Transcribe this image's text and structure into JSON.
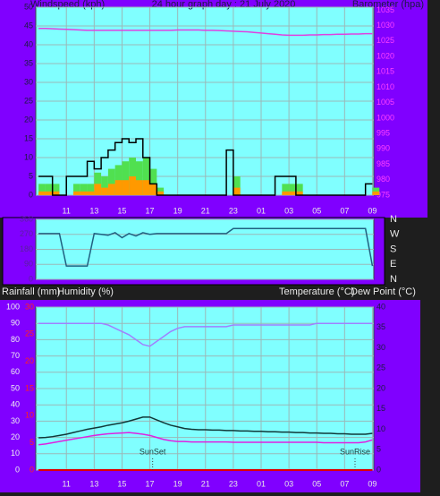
{
  "chart_data": [
    {
      "type": "line",
      "title": "24 hour graph day : 21 July 2020",
      "ylabel": "Windspeed (kph)",
      "y2label": "Barometer (hpa)",
      "x": [
        9,
        9.5,
        10,
        10.5,
        11,
        11.5,
        12,
        12.5,
        13,
        13.5,
        14,
        14.5,
        15,
        15.5,
        16,
        16.5,
        17,
        17.5,
        18,
        18.5,
        19,
        19.5,
        20,
        20.5,
        21,
        21.5,
        22,
        22.5,
        23,
        23.5,
        24,
        24.5,
        25,
        25.5,
        26,
        26.5,
        27,
        27.5,
        28,
        28.5,
        29,
        29.5,
        30,
        30.5,
        31,
        31.5,
        32,
        32.5,
        33
      ],
      "xlim": [
        8.8,
        33.1
      ],
      "xticks": [
        11,
        13,
        15,
        17,
        19,
        21,
        23,
        {
          "value": 25,
          "label": "01"
        },
        {
          "value": 27,
          "label": "03"
        },
        {
          "value": 29,
          "label": "05"
        },
        {
          "value": 31,
          "label": "07"
        },
        {
          "value": 33,
          "label": "09"
        }
      ],
      "ylim": [
        0,
        50
      ],
      "yticks": [
        0,
        5,
        10,
        15,
        20,
        25,
        30,
        35,
        40,
        45,
        50
      ],
      "y2lim": [
        975,
        1036
      ],
      "y2ticks": [
        975,
        980,
        985,
        990,
        995,
        1000,
        1005,
        1010,
        1015,
        1020,
        1025,
        1030,
        1035
      ],
      "tick_colors": {
        "y": "#1a1a40",
        "y2": "#ff40ff"
      },
      "grid": true,
      "series": [
        {
          "color": "#50e050",
          "style": "bar",
          "values": [
            3,
            3,
            3,
            0,
            0,
            3,
            3,
            3,
            6,
            5,
            7,
            8,
            9,
            10,
            9,
            10,
            7,
            2,
            0,
            0,
            0,
            0,
            0,
            0,
            0,
            0,
            0,
            0,
            5,
            0,
            0,
            0,
            0,
            0,
            0,
            3,
            3,
            3,
            0,
            0,
            0,
            0,
            0,
            0,
            0,
            0,
            0,
            0,
            2
          ]
        },
        {
          "color": "#ff9900",
          "style": "bar",
          "values": [
            1,
            1,
            1,
            0,
            0,
            1,
            1,
            1,
            3,
            2,
            3,
            4,
            4,
            5,
            4,
            4,
            3,
            1,
            0,
            0,
            0,
            0,
            0,
            0,
            0,
            0,
            0,
            0,
            2,
            0,
            0,
            0,
            0,
            0,
            0,
            1,
            1,
            1,
            0,
            0,
            0,
            0,
            0,
            0,
            0,
            0,
            0,
            0,
            1
          ]
        },
        {
          "color": "#000000",
          "style": "step",
          "values": [
            5,
            5,
            5,
            0,
            0,
            5,
            5,
            5,
            9,
            7,
            10,
            12,
            14,
            15,
            14,
            15,
            10,
            3,
            0,
            0,
            0,
            0,
            0,
            0,
            0,
            0,
            0,
            0,
            12,
            0,
            0,
            0,
            0,
            0,
            0,
            5,
            5,
            5,
            0,
            0,
            0,
            0,
            0,
            0,
            0,
            0,
            0,
            0,
            3
          ]
        },
        {
          "color": "#e040e0",
          "style": "line",
          "axis": "y2",
          "values": [
            1029.1,
            1029.1,
            1029.0,
            1028.9,
            1028.8,
            1028.7,
            1028.6,
            1028.5,
            1028.5,
            1028.5,
            1028.5,
            1028.5,
            1028.5,
            1028.5,
            1028.5,
            1028.5,
            1028.5,
            1028.5,
            1028.5,
            1028.5,
            1028.6,
            1028.6,
            1028.6,
            1028.6,
            1028.5,
            1028.5,
            1028.4,
            1028.3,
            1028.2,
            1028.1,
            1028.0,
            1027.8,
            1027.6,
            1027.4,
            1027.2,
            1027.0,
            1026.9,
            1026.9,
            1026.9,
            1027.0,
            1027.0,
            1027.1,
            1027.1,
            1027.2,
            1027.2,
            1027.3,
            1027.3,
            1027.4,
            1027.4
          ]
        }
      ]
    },
    {
      "type": "line",
      "x": [
        9,
        9.5,
        10,
        10.5,
        11,
        11.5,
        12,
        12.5,
        13,
        13.5,
        14,
        14.5,
        15,
        15.5,
        16,
        16.5,
        17,
        17.5,
        18,
        18.5,
        19,
        19.5,
        20,
        20.5,
        21,
        21.5,
        22,
        22.5,
        23,
        23.5,
        24,
        24.5,
        25,
        25.5,
        26,
        26.5,
        27,
        27.5,
        28,
        28.5,
        29,
        29.5,
        30,
        30.5,
        31,
        31.5,
        32,
        32.5,
        33
      ],
      "xlim": [
        8.8,
        33.1
      ],
      "ylim": [
        0,
        360
      ],
      "yticks": [
        0,
        90,
        180,
        270,
        360
      ],
      "y2ticks": [
        {
          "value": 360,
          "label": "N"
        },
        {
          "value": 270,
          "label": "W"
        },
        {
          "value": 180,
          "label": "S"
        },
        {
          "value": 90,
          "label": "E"
        },
        {
          "value": 0,
          "label": "N"
        }
      ],
      "tick_colors": {
        "y": "#5a20a0",
        "y2": "#e8e8e8"
      },
      "grid": true,
      "series": [
        {
          "color": "#206080",
          "style": "line",
          "values": [
            275,
            275,
            275,
            275,
            80,
            80,
            80,
            80,
            275,
            270,
            265,
            280,
            250,
            275,
            260,
            280,
            270,
            275,
            275,
            275,
            275,
            275,
            275,
            275,
            275,
            275,
            275,
            275,
            305,
            305,
            305,
            305,
            305,
            305,
            305,
            305,
            305,
            305,
            305,
            305,
            305,
            305,
            305,
            305,
            305,
            305,
            305,
            305,
            80
          ]
        }
      ]
    },
    {
      "type": "line",
      "x": [
        9,
        9.5,
        10,
        10.5,
        11,
        11.5,
        12,
        12.5,
        13,
        13.5,
        14,
        14.5,
        15,
        15.5,
        16,
        16.5,
        17,
        17.5,
        18,
        18.5,
        19,
        19.5,
        20,
        20.5,
        21,
        21.5,
        22,
        22.5,
        23,
        23.5,
        24,
        24.5,
        25,
        25.5,
        26,
        26.5,
        27,
        27.5,
        28,
        28.5,
        29,
        29.5,
        30,
        30.5,
        31,
        31.5,
        32,
        32.5,
        33
      ],
      "xlim": [
        8.8,
        33.1
      ],
      "xticks": [
        11,
        13,
        15,
        17,
        19,
        21,
        23,
        {
          "value": 25,
          "label": "01"
        },
        {
          "value": 27,
          "label": "03"
        },
        {
          "value": 29,
          "label": "05"
        },
        {
          "value": 31,
          "label": "07"
        },
        {
          "value": 33,
          "label": "09"
        }
      ],
      "ylim": [
        0,
        100
      ],
      "yticks": [
        0,
        10,
        20,
        30,
        40,
        50,
        60,
        70,
        80,
        90,
        100
      ],
      "y2lim": [
        0,
        40
      ],
      "y2ticks": [
        0,
        5,
        10,
        15,
        20,
        25,
        30,
        35,
        40
      ],
      "y3lim": [
        0,
        30
      ],
      "y3ticks": [
        0,
        5,
        10,
        15,
        20,
        25,
        30
      ],
      "tick_colors": {
        "y": "#f0f0f0",
        "y2": "#1a1a40",
        "y3": "#ff2020"
      },
      "grid": true,
      "annotations": [
        {
          "text": "SunSet",
          "x": 17.2
        },
        {
          "text": "SunRise",
          "x": 31.75
        }
      ],
      "series": [
        {
          "name": "Rainfall (mm)",
          "color": "#e00000",
          "style": "line",
          "axis": "y3",
          "values": [
            0,
            0,
            0,
            0,
            0,
            0,
            0,
            0,
            0,
            0,
            0,
            0,
            0,
            0,
            0,
            0,
            0,
            0,
            0,
            0,
            0,
            0,
            0,
            0,
            0,
            0,
            0,
            0,
            0,
            0,
            0,
            0,
            0,
            0,
            0,
            0,
            0,
            0,
            0,
            0,
            0,
            0,
            0,
            0,
            0,
            0,
            0,
            0,
            0
          ]
        },
        {
          "name": "Humidity (%)",
          "color": "#a080ff",
          "style": "line",
          "values": [
            90,
            90,
            90,
            90,
            90,
            90,
            90,
            90,
            90,
            90,
            89,
            87,
            85,
            83,
            80,
            77,
            76,
            79,
            82,
            85,
            87,
            88,
            88,
            88,
            88,
            88,
            88,
            88,
            89,
            89,
            89,
            89,
            89,
            89,
            89,
            89,
            89,
            89,
            89,
            89,
            90,
            90,
            90,
            90,
            90,
            90,
            90,
            90,
            90
          ]
        },
        {
          "name": "Temperature (°C)",
          "color": "#103838",
          "style": "line",
          "axis": "y2",
          "values": [
            7.9,
            8.0,
            8.2,
            8.5,
            8.8,
            9.2,
            9.6,
            10.0,
            10.3,
            10.6,
            11.0,
            11.3,
            11.6,
            12.0,
            12.5,
            13.0,
            13.0,
            12.3,
            11.6,
            11.0,
            10.6,
            10.2,
            10.0,
            9.9,
            9.9,
            9.8,
            9.8,
            9.7,
            9.7,
            9.6,
            9.6,
            9.5,
            9.5,
            9.4,
            9.4,
            9.3,
            9.3,
            9.2,
            9.2,
            9.1,
            9.1,
            9.0,
            9.0,
            8.9,
            8.9,
            8.8,
            8.8,
            8.8,
            9.0
          ]
        },
        {
          "name": "Dew Point (°C)",
          "color": "#e020e0",
          "style": "line",
          "axis": "y2",
          "values": [
            6.2,
            6.4,
            6.7,
            7.0,
            7.3,
            7.6,
            7.9,
            8.2,
            8.5,
            8.7,
            8.9,
            9.0,
            9.1,
            9.2,
            9.0,
            8.8,
            8.5,
            8.0,
            7.5,
            7.2,
            7.0,
            7.0,
            6.9,
            6.9,
            6.9,
            6.9,
            6.9,
            6.9,
            6.8,
            6.8,
            6.8,
            6.8,
            6.8,
            6.8,
            6.8,
            6.8,
            6.8,
            6.8,
            6.8,
            6.8,
            6.8,
            6.7,
            6.7,
            6.7,
            6.7,
            6.7,
            6.7,
            6.9,
            7.4
          ]
        }
      ]
    }
  ]
}
